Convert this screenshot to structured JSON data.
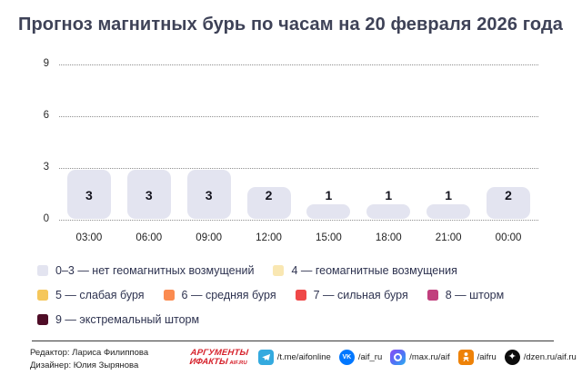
{
  "title": "Прогноз магнитных бурь по часам на 20 февраля 2026 года",
  "chart_data": {
    "type": "bar",
    "title": "Прогноз магнитных бурь по часам на 20 февраля 2026 года",
    "categories": [
      "03:00",
      "06:00",
      "09:00",
      "12:00",
      "15:00",
      "18:00",
      "21:00",
      "00:00"
    ],
    "values": [
      3,
      3,
      3,
      2,
      1,
      1,
      1,
      2
    ],
    "xlabel": "",
    "ylabel": "",
    "ylim": [
      0,
      9
    ],
    "yticks": [
      0,
      3,
      6,
      9
    ],
    "grid": "dotted-horizontal",
    "bar_color": "#e3e4f0",
    "value_labels": [
      "3",
      "3",
      "3",
      "2",
      "1",
      "1",
      "1",
      "2"
    ],
    "legend_position": "bottom"
  },
  "legend": {
    "items": [
      {
        "row": 0,
        "label": "0–3 — нет геомагнитных возмущений",
        "color": "#e3e4f0"
      },
      {
        "row": 0,
        "label": "4 — геомагнитные возмущения",
        "color": "#f9e7b2"
      },
      {
        "row": 1,
        "label": "5 — слабая буря",
        "color": "#f5c75b"
      },
      {
        "row": 1,
        "label": "6 — средняя буря",
        "color": "#fb8b50"
      },
      {
        "row": 1,
        "label": "7 — сильная буря",
        "color": "#ef4848"
      },
      {
        "row": 1,
        "label": "8 — шторм",
        "color": "#c13f7d"
      },
      {
        "row": 2,
        "label": "9 — экстремальный шторм",
        "color": "#4f0d27"
      }
    ]
  },
  "footer": {
    "credits": [
      "Редактор: Лариса Филиппова",
      "Дизайнер: Юлия Зырянова"
    ],
    "logo": {
      "line1": "АРГУМЕНТЫ",
      "line2": "ИФАКТЫ",
      "suffix": "AIF.RU"
    },
    "socials": [
      {
        "icon": "telegram-icon",
        "label": "/t.me/aifonline",
        "color": "#34aadf"
      },
      {
        "icon": "vk-icon",
        "label": "/aif_ru",
        "color": "#0077ff"
      },
      {
        "icon": "max-icon",
        "label": "/max.ru/aif",
        "color": "#6b5cf5"
      },
      {
        "icon": "odnoklassniki-icon",
        "label": "/aifru",
        "color": "#ee8208"
      },
      {
        "icon": "dzen-icon",
        "label": "/dzen.ru/aif.ru",
        "color": "#0d0d0d"
      }
    ]
  }
}
